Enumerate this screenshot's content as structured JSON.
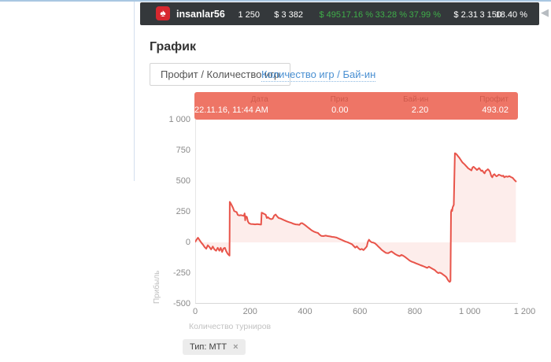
{
  "header": {
    "username": "insanlar56",
    "logo_icon": "pokerstars-spade-icon",
    "scroll_arrow_icon": "chevron-left-icon",
    "colors": {
      "bar_bg": "#34383b",
      "green": "#3fae49",
      "white": "#ffffff"
    },
    "stats": [
      {
        "value": "1 250",
        "color": "#ffffff"
      },
      {
        "value": "$ 3 382",
        "color": "#ffffff"
      },
      {
        "value": "$ 495",
        "color": "#3fae49"
      },
      {
        "value": "17.16 %",
        "color": "#3fae49"
      },
      {
        "value": "33.28 %",
        "color": "#3fae49"
      },
      {
        "value": "37.99 %",
        "color": "#3fae49"
      },
      {
        "value": "$ 2.31",
        "color": "#ffffff"
      },
      {
        "value": "3 150",
        "color": "#ffffff"
      },
      {
        "value": "18.40 %",
        "color": "#ffffff"
      }
    ]
  },
  "section": {
    "title": "График",
    "tabs": [
      {
        "label": "Профит / Количество игр",
        "active": true
      },
      {
        "label": "Количество игр / Бай-ин",
        "active": false
      }
    ]
  },
  "tooltip": {
    "bg_color": "#ee7566",
    "columns": [
      {
        "label": "Дата",
        "value": "22.11.16, 11:44 AM"
      },
      {
        "label": "Приз",
        "value": "0.00"
      },
      {
        "label": "Бай-ин",
        "value": "2.20"
      },
      {
        "label": "Профит",
        "value": "493.02"
      }
    ]
  },
  "filter_chip": {
    "label": "Тип: MTT",
    "close": "×"
  },
  "chart_data": {
    "type": "area",
    "title": "",
    "xlabel": "Количество турниров",
    "ylabel": "Прибыль",
    "xlim": [
      0,
      1253
    ],
    "ylim": [
      -500,
      1000
    ],
    "grid": false,
    "legend": "none",
    "xticks": [
      {
        "value": 0,
        "label": "0"
      },
      {
        "value": 200,
        "label": "200"
      },
      {
        "value": 400,
        "label": "400"
      },
      {
        "value": 600,
        "label": "600"
      },
      {
        "value": 800,
        "label": "800"
      },
      {
        "value": 1000,
        "label": "1 000"
      },
      {
        "value": 1200,
        "label": "1 200"
      }
    ],
    "yticks": [
      {
        "value": 1000,
        "label": "1 000"
      },
      {
        "value": 750,
        "label": "750"
      },
      {
        "value": 500,
        "label": "500"
      },
      {
        "value": 250,
        "label": "250"
      },
      {
        "value": 0,
        "label": "0"
      },
      {
        "value": -250,
        "label": "-250"
      },
      {
        "value": -500,
        "label": "-500"
      }
    ],
    "line_color": "#e8544a",
    "fill_color": "rgba(238,117,102,0.13)",
    "series": [
      {
        "name": "Профит",
        "points": [
          [
            0,
            5
          ],
          [
            5,
            22
          ],
          [
            10,
            38
          ],
          [
            16,
            18
          ],
          [
            22,
            -2
          ],
          [
            28,
            -18
          ],
          [
            34,
            -38
          ],
          [
            40,
            -52
          ],
          [
            46,
            -24
          ],
          [
            52,
            -38
          ],
          [
            58,
            -58
          ],
          [
            64,
            -34
          ],
          [
            70,
            -58
          ],
          [
            76,
            -68
          ],
          [
            82,
            -44
          ],
          [
            88,
            -68
          ],
          [
            93,
            -44
          ],
          [
            98,
            -78
          ],
          [
            103,
            -50
          ],
          [
            108,
            -44
          ],
          [
            113,
            -72
          ],
          [
            118,
            -92
          ],
          [
            123,
            -104
          ],
          [
            125,
            -108
          ],
          [
            126,
            330
          ],
          [
            130,
            316
          ],
          [
            134,
            298
          ],
          [
            138,
            280
          ],
          [
            142,
            256
          ],
          [
            147,
            250
          ],
          [
            151,
            246
          ],
          [
            155,
            224
          ],
          [
            160,
            220
          ],
          [
            166,
            222
          ],
          [
            172,
            219
          ],
          [
            177,
            216
          ],
          [
            180,
            236
          ],
          [
            182,
            180
          ],
          [
            184,
            212
          ],
          [
            188,
            208
          ],
          [
            192,
            170
          ],
          [
            196,
            156
          ],
          [
            202,
            150
          ],
          [
            210,
            149
          ],
          [
            218,
            147
          ],
          [
            226,
            149
          ],
          [
            234,
            147
          ],
          [
            240,
            145
          ],
          [
            242,
            242
          ],
          [
            247,
            237
          ],
          [
            252,
            231
          ],
          [
            257,
            225
          ],
          [
            261,
            199
          ],
          [
            265,
            205
          ],
          [
            270,
            195
          ],
          [
            276,
            189
          ],
          [
            282,
            193
          ],
          [
            288,
            219
          ],
          [
            293,
            227
          ],
          [
            298,
            213
          ],
          [
            304,
            199
          ],
          [
            310,
            195
          ],
          [
            318,
            187
          ],
          [
            326,
            179
          ],
          [
            334,
            171
          ],
          [
            342,
            165
          ],
          [
            350,
            159
          ],
          [
            358,
            151
          ],
          [
            366,
            147
          ],
          [
            374,
            145
          ],
          [
            380,
            143
          ],
          [
            384,
            155
          ],
          [
            389,
            157
          ],
          [
            395,
            149
          ],
          [
            401,
            139
          ],
          [
            409,
            125
          ],
          [
            417,
            111
          ],
          [
            425,
            97
          ],
          [
            433,
            87
          ],
          [
            441,
            81
          ],
          [
            447,
            77
          ],
          [
            453,
            63
          ],
          [
            459,
            53
          ],
          [
            467,
            51
          ],
          [
            475,
            55
          ],
          [
            483,
            51
          ],
          [
            491,
            49
          ],
          [
            499,
            45
          ],
          [
            507,
            43
          ],
          [
            515,
            39
          ],
          [
            523,
            31
          ],
          [
            531,
            23
          ],
          [
            539,
            15
          ],
          [
            547,
            7
          ],
          [
            555,
            1
          ],
          [
            563,
            -7
          ],
          [
            571,
            -15
          ],
          [
            577,
            -29
          ],
          [
            583,
            -43
          ],
          [
            589,
            -33
          ],
          [
            595,
            -49
          ],
          [
            601,
            -59
          ],
          [
            607,
            -53
          ],
          [
            613,
            -63
          ],
          [
            619,
            -49
          ],
          [
            625,
            -33
          ],
          [
            629,
            6
          ],
          [
            633,
            22
          ],
          [
            637,
            10
          ],
          [
            643,
            0
          ],
          [
            649,
            -2
          ],
          [
            655,
            -8
          ],
          [
            661,
            -20
          ],
          [
            667,
            -34
          ],
          [
            673,
            -46
          ],
          [
            679,
            -60
          ],
          [
            687,
            -74
          ],
          [
            695,
            -86
          ],
          [
            703,
            -88
          ],
          [
            709,
            -80
          ],
          [
            715,
            -74
          ],
          [
            721,
            -84
          ],
          [
            729,
            -96
          ],
          [
            737,
            -106
          ],
          [
            745,
            -112
          ],
          [
            751,
            -102
          ],
          [
            757,
            -108
          ],
          [
            765,
            -120
          ],
          [
            773,
            -134
          ],
          [
            781,
            -148
          ],
          [
            789,
            -158
          ],
          [
            797,
            -164
          ],
          [
            805,
            -172
          ],
          [
            813,
            -178
          ],
          [
            821,
            -186
          ],
          [
            829,
            -192
          ],
          [
            837,
            -200
          ],
          [
            845,
            -208
          ],
          [
            851,
            -198
          ],
          [
            857,
            -206
          ],
          [
            865,
            -216
          ],
          [
            873,
            -226
          ],
          [
            879,
            -240
          ],
          [
            885,
            -250
          ],
          [
            891,
            -246
          ],
          [
            897,
            -252
          ],
          [
            903,
            -262
          ],
          [
            909,
            -272
          ],
          [
            915,
            -284
          ],
          [
            919,
            -300
          ],
          [
            923,
            -314
          ],
          [
            927,
            -322
          ],
          [
            930,
            -314
          ],
          [
            932,
            246
          ],
          [
            934,
            266
          ],
          [
            936,
            256
          ],
          [
            938,
            286
          ],
          [
            940,
            296
          ],
          [
            942,
            306
          ],
          [
            946,
            726
          ],
          [
            950,
            722
          ],
          [
            954,
            712
          ],
          [
            958,
            700
          ],
          [
            962,
            690
          ],
          [
            966,
            676
          ],
          [
            970,
            662
          ],
          [
            974,
            650
          ],
          [
            978,
            642
          ],
          [
            982,
            634
          ],
          [
            986,
            624
          ],
          [
            990,
            614
          ],
          [
            994,
            604
          ],
          [
            998,
            598
          ],
          [
            1002,
            592
          ],
          [
            1006,
            586
          ],
          [
            1010,
            610
          ],
          [
            1014,
            616
          ],
          [
            1018,
            608
          ],
          [
            1022,
            600
          ],
          [
            1026,
            590
          ],
          [
            1030,
            596
          ],
          [
            1034,
            606
          ],
          [
            1038,
            594
          ],
          [
            1042,
            582
          ],
          [
            1046,
            586
          ],
          [
            1050,
            572
          ],
          [
            1054,
            562
          ],
          [
            1058,
            582
          ],
          [
            1062,
            588
          ],
          [
            1066,
            596
          ],
          [
            1070,
            588
          ],
          [
            1074,
            574
          ],
          [
            1078,
            542
          ],
          [
            1082,
            530
          ],
          [
            1086,
            550
          ],
          [
            1090,
            556
          ],
          [
            1094,
            544
          ],
          [
            1098,
            538
          ],
          [
            1102,
            544
          ],
          [
            1106,
            552
          ],
          [
            1110,
            548
          ],
          [
            1114,
            544
          ],
          [
            1118,
            540
          ],
          [
            1122,
            544
          ],
          [
            1126,
            530
          ],
          [
            1132,
            538
          ],
          [
            1138,
            534
          ],
          [
            1144,
            540
          ],
          [
            1150,
            532
          ],
          [
            1156,
            526
          ],
          [
            1162,
            510
          ],
          [
            1168,
            497
          ]
        ]
      }
    ]
  }
}
